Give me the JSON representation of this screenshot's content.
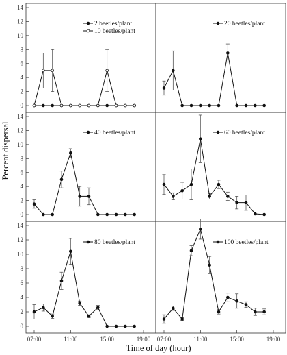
{
  "chart_data": {
    "type": "line",
    "ylabel": "Percent dispersal",
    "xlabel": "Time of day (hour)",
    "x_tick_labels": [
      "07:00",
      "11:00",
      "15:00",
      "19:00"
    ],
    "y_tick_labels": [
      "0",
      "2",
      "4",
      "6",
      "8",
      "10",
      "12",
      "14"
    ],
    "ylim": [
      0,
      14
    ],
    "xlim": [
      7,
      19
    ],
    "grid": false,
    "panels": [
      {
        "series": [
          {
            "name": "2 beetles/plant",
            "marker": "filled",
            "x": [
              7,
              8,
              9,
              10,
              11,
              12,
              13,
              14,
              15,
              16,
              17,
              18
            ],
            "y": [
              0,
              0,
              0,
              0,
              0,
              0,
              0,
              0,
              0,
              0,
              0,
              0
            ],
            "err": [
              0,
              0,
              0,
              0,
              0,
              0,
              0,
              0,
              0,
              0,
              0,
              0
            ]
          },
          {
            "name": "10 beetles/plant",
            "marker": "open",
            "x": [
              7,
              8,
              9,
              10,
              11,
              12,
              13,
              14,
              15,
              16,
              17,
              18
            ],
            "y": [
              0,
              5,
              5,
              0,
              0,
              0,
              0,
              0,
              5,
              0,
              0,
              0
            ],
            "err": [
              0,
              2.5,
              3,
              0,
              0,
              0,
              0,
              0,
              3,
              0,
              0,
              0
            ]
          }
        ]
      },
      {
        "series": [
          {
            "name": "20 beetles/plant",
            "marker": "filled",
            "x": [
              7,
              8,
              9,
              10,
              11,
              12,
              13,
              14,
              15,
              16,
              17,
              18
            ],
            "y": [
              2.5,
              5,
              0,
              0,
              0,
              0,
              0,
              7.5,
              0,
              0,
              0,
              0
            ],
            "err": [
              1,
              2.8,
              0,
              0,
              0,
              0,
              0,
              1.3,
              0,
              0,
              0,
              0
            ]
          }
        ]
      },
      {
        "series": [
          {
            "name": "40 beetles/plant",
            "marker": "filled",
            "x": [
              7,
              8,
              9,
              10,
              11,
              12,
              13,
              14,
              15,
              16,
              17,
              18
            ],
            "y": [
              1.5,
              0,
              0,
              5,
              8.8,
              2.6,
              2.6,
              0,
              0,
              0,
              0,
              0
            ],
            "err": [
              0.6,
              0,
              0,
              1.2,
              0.6,
              1.4,
              1.2,
              0,
              0,
              0,
              0,
              0
            ]
          }
        ]
      },
      {
        "series": [
          {
            "name": "60 beetles/plant",
            "marker": "filled",
            "x": [
              7,
              8,
              9,
              10,
              11,
              12,
              13,
              14,
              15,
              16,
              17,
              18
            ],
            "y": [
              4.3,
              2.6,
              3.4,
              4.3,
              10.8,
              2.6,
              4.3,
              2.6,
              1.7,
              1.7,
              0.1,
              0
            ],
            "err": [
              1.4,
              0.5,
              1.2,
              2.2,
              3.4,
              0.4,
              0.6,
              0.6,
              0.9,
              1.1,
              0,
              0
            ]
          }
        ]
      },
      {
        "series": [
          {
            "name": "80 beetles/plant",
            "marker": "filled",
            "x": [
              7,
              8,
              9,
              10,
              11,
              12,
              13,
              14,
              15,
              16,
              17,
              18
            ],
            "y": [
              2,
              2.6,
              1.4,
              6.3,
              10.4,
              3.2,
              1.4,
              2.6,
              0,
              0,
              0,
              0
            ],
            "err": [
              1,
              0.5,
              0.3,
              1.2,
              1.8,
              0.3,
              0.2,
              0.3,
              0,
              0,
              0,
              0
            ]
          }
        ]
      },
      {
        "series": [
          {
            "name": "100 beetles/plant",
            "marker": "filled",
            "x": [
              7,
              8,
              9,
              10,
              11,
              12,
              13,
              14,
              15,
              16,
              17,
              18
            ],
            "y": [
              1,
              2.5,
              1,
              10.5,
              13.5,
              8.5,
              2,
              4,
              3.5,
              3,
              2,
              2
            ],
            "err": [
              0.6,
              0.3,
              0.2,
              0.7,
              1.4,
              1.2,
              0.3,
              0.6,
              1,
              0.4,
              0.5,
              0.4
            ]
          }
        ]
      }
    ]
  }
}
